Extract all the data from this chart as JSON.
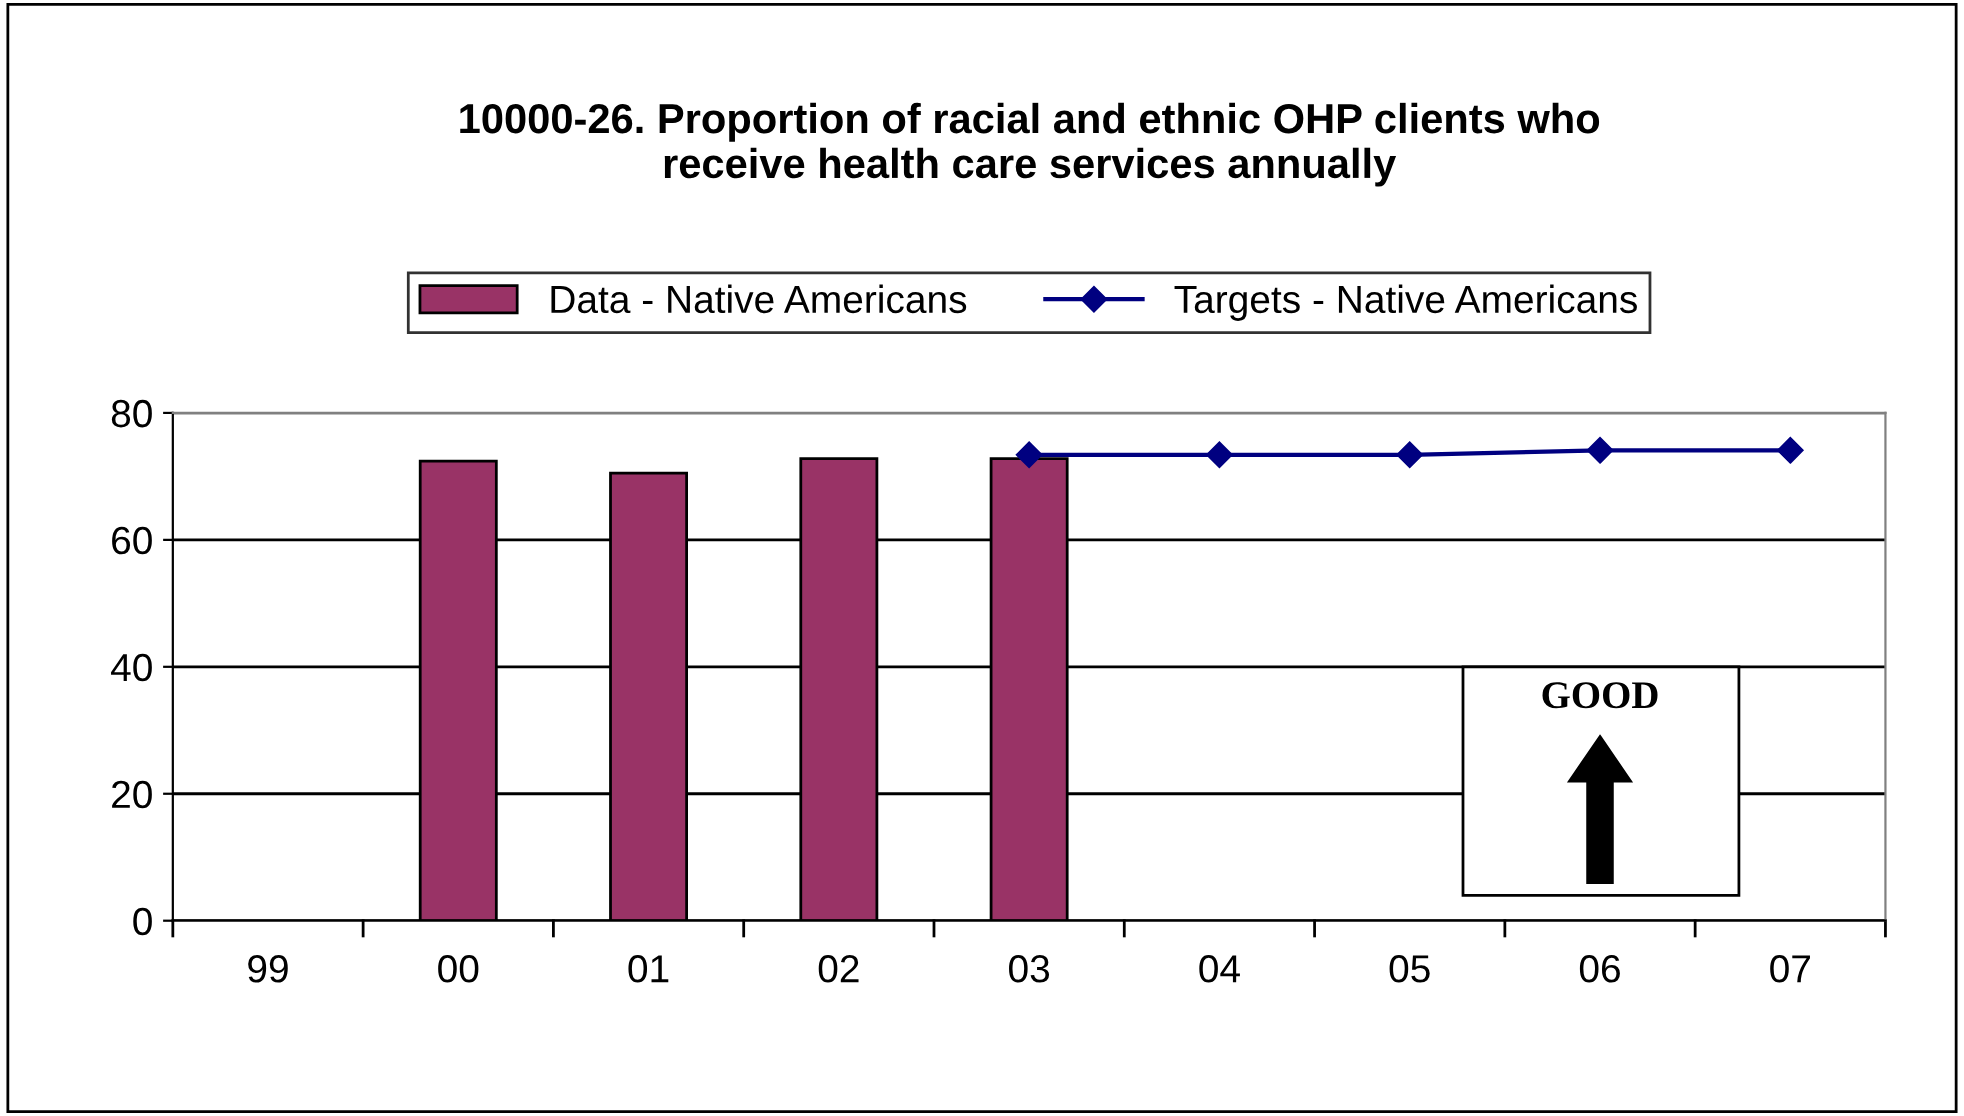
{
  "chart_data": {
    "type": "bar",
    "title": "10000-26. Proportion of racial and ethnic OHP clients who\nreceive health care services annually",
    "categories": [
      "99",
      "00",
      "01",
      "02",
      "03",
      "04",
      "05",
      "06",
      "07"
    ],
    "series": [
      {
        "name": "Data - Native Americans",
        "color": "#993366",
        "values": [
          null,
          72.4,
          70.5,
          72.8,
          72.8,
          null,
          null,
          null,
          null
        ]
      },
      {
        "name": "Targets - Native Americans",
        "type": "line",
        "color": "#000080",
        "marker": "diamond",
        "values": [
          null,
          null,
          null,
          null,
          73.4,
          73.4,
          73.4,
          74.1,
          74.1
        ]
      }
    ],
    "ylim": [
      0,
      80
    ],
    "yticks": [
      0,
      20,
      40,
      60,
      80
    ],
    "grid": "y",
    "legend": "top",
    "annotations": [
      "GOOD"
    ]
  }
}
